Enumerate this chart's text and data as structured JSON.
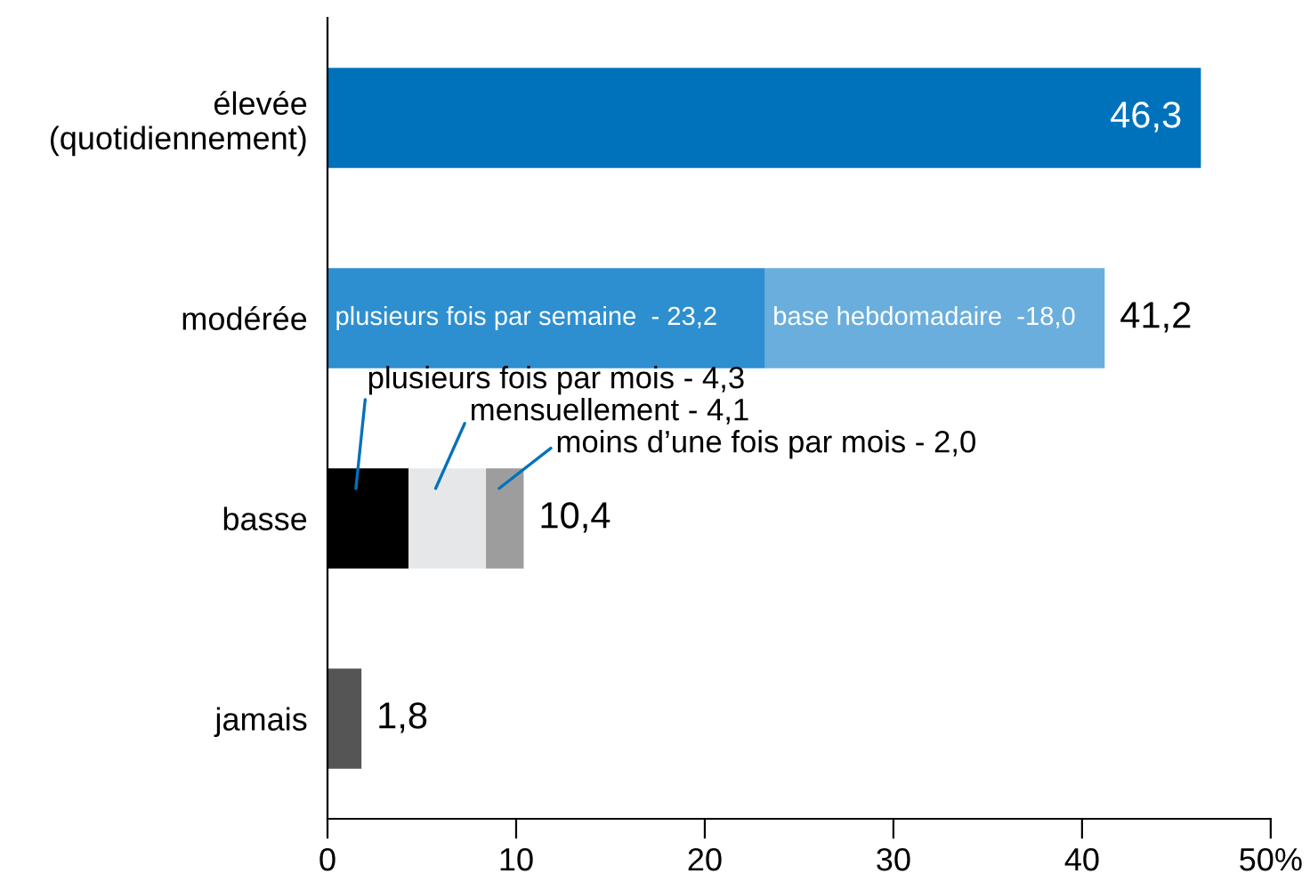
{
  "chart_data": {
    "type": "bar",
    "orientation": "horizontal",
    "stacked": true,
    "categories": [
      "élevée\n(quotidiennement)",
      "modérée",
      "basse",
      "jamais"
    ],
    "series": [
      {
        "colors": [
          "#0072bb",
          "#2e8fd0",
          "#000000",
          "#555555"
        ],
        "values": [
          46.3,
          23.2,
          4.3,
          1.8
        ],
        "value_labels": [
          "46,3",
          null,
          null,
          null
        ]
      },
      {
        "colors": [
          "#6aaede",
          "#6aaede",
          "#e6e7e8",
          "#e6e7e8"
        ],
        "values": [
          null,
          18.0,
          4.1,
          null
        ]
      },
      {
        "colors": [
          "#9d9d9d",
          "#9d9d9d",
          "#9d9d9d",
          "#9d9d9d"
        ],
        "values": [
          null,
          null,
          2.0,
          null
        ]
      }
    ],
    "totals": [
      null,
      "41,2",
      "10,4",
      "1,8"
    ],
    "annotations": [
      "plusieurs fois par semaine  - 23,2",
      "base hebdomadaire  -18,0",
      "plusieurs fois par mois - 4,3",
      "mensuellement - 4,1",
      "moins d’une fois par mois - 2,0"
    ],
    "xlim": [
      0,
      50
    ],
    "xticks": [
      0,
      10,
      20,
      30,
      40,
      {
        "value": 50,
        "label": "50%"
      }
    ]
  }
}
